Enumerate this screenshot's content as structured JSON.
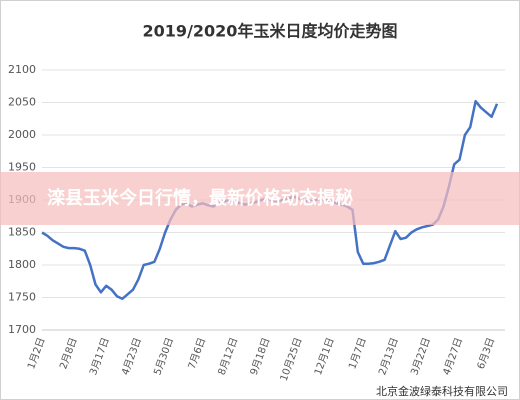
{
  "chart_data": {
    "type": "line",
    "title": "2019/2020年玉米日度均价走势图",
    "banner": "滦县玉米今日行情，最新价格动态揭秘",
    "source": "北京金波绿泰科技有限公司",
    "categories": [
      "1月2日",
      null,
      null,
      null,
      null,
      null,
      "2月8日",
      null,
      null,
      null,
      null,
      null,
      "3月17日",
      null,
      null,
      null,
      null,
      null,
      "4月23日",
      null,
      null,
      null,
      null,
      null,
      "5月30日",
      null,
      null,
      null,
      null,
      null,
      "7月6日",
      null,
      null,
      null,
      null,
      null,
      "8月12日",
      null,
      null,
      null,
      null,
      null,
      "9月18日",
      null,
      null,
      null,
      null,
      null,
      "10月25日",
      null,
      null,
      null,
      null,
      null,
      "12月1日",
      null,
      null,
      null,
      null,
      null,
      "1月7日",
      null,
      null,
      null,
      null,
      null,
      "2月13日",
      null,
      null,
      null,
      null,
      null,
      "3月22日",
      null,
      null,
      null,
      null,
      null,
      "4月27日",
      null,
      null,
      null,
      null,
      null,
      "6月3日",
      null
    ],
    "series": [
      {
        "color": "#4472c4",
        "values": [
          1850,
          1845,
          1838,
          1833,
          1828,
          1826,
          1826,
          1825,
          1822,
          1800,
          1770,
          1758,
          1768,
          1762,
          1752,
          1748,
          1755,
          1762,
          1778,
          1800,
          1802,
          1805,
          1825,
          1850,
          1870,
          1885,
          1893,
          1895,
          1890,
          1893,
          1895,
          1892,
          1890,
          1895,
          1898,
          1900,
          1898,
          1895,
          1893,
          1895,
          1897,
          1900,
          1902,
          1900,
          1898,
          1900,
          1903,
          1905,
          1903,
          1900,
          1898,
          1900,
          1902,
          1900,
          1898,
          1895,
          1893,
          1890,
          1885,
          1820,
          1802,
          1802,
          1803,
          1805,
          1808,
          1830,
          1852,
          1840,
          1842,
          1850,
          1855,
          1858,
          1860,
          1862,
          1870,
          1890,
          1920,
          1955,
          1962,
          2000,
          2012,
          2052,
          2042,
          2035,
          2028,
          2048
        ]
      }
    ],
    "ylim": [
      1700,
      2100
    ],
    "yticks": [
      1700,
      1750,
      1800,
      1850,
      1900,
      1950,
      2000,
      2050,
      2100
    ],
    "grid": true
  }
}
